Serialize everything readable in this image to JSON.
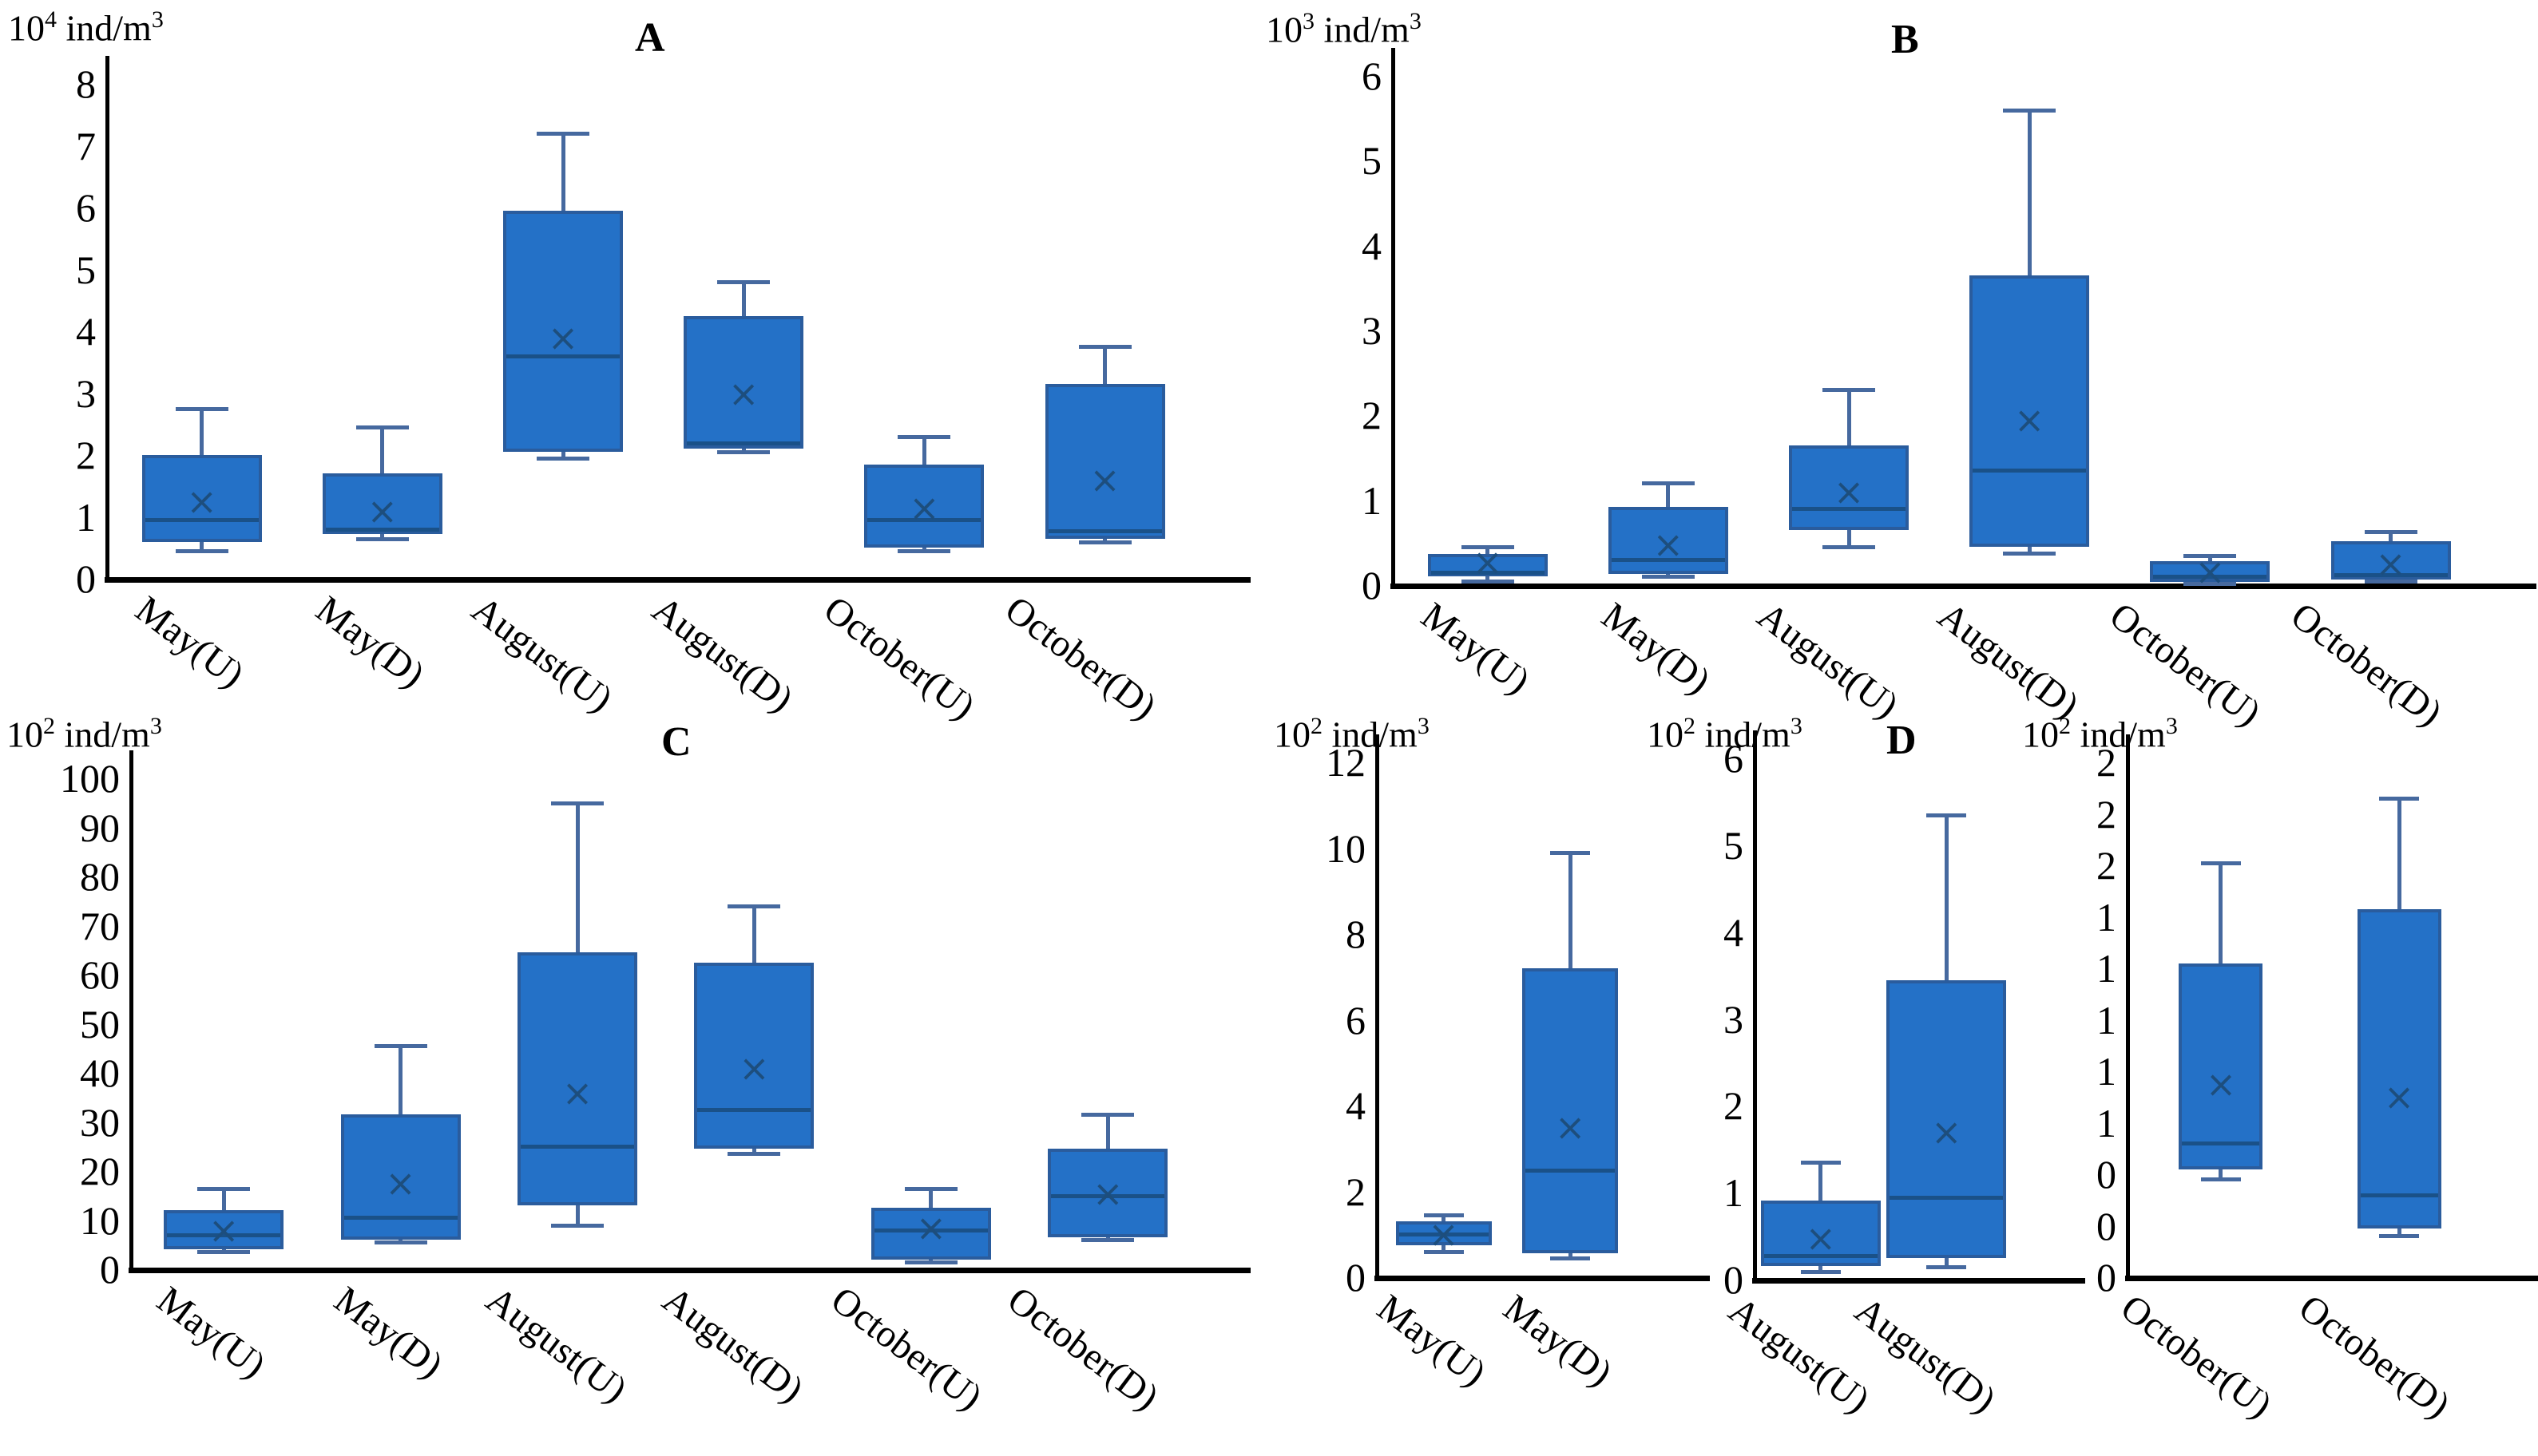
{
  "figure": {
    "background": "#ffffff",
    "colors": {
      "box_fill": "#2471c7",
      "box_border": "#2a5c9d",
      "whisker": "#46699f",
      "median": "#1a5188",
      "mean": "#1d4e7d",
      "axis": "#000000",
      "text": "#000000"
    },
    "mean_marker": "×"
  },
  "chart_data": [
    {
      "id": "A",
      "type": "box",
      "panel_letter": "A",
      "unit_text": "10⁴ ind/m³",
      "unit": {
        "prefix": "10",
        "power": "4",
        "unit": "ind/m",
        "unit_power": "3"
      },
      "ylabel": "10^4 ind/m^3",
      "ylim": [
        0,
        8
      ],
      "grid": false,
      "yticks": [
        {
          "v": 0,
          "label": "0"
        },
        {
          "v": 1,
          "label": "1"
        },
        {
          "v": 2,
          "label": "2"
        },
        {
          "v": 3,
          "label": "3"
        },
        {
          "v": 4,
          "label": "4"
        },
        {
          "v": 5,
          "label": "5"
        },
        {
          "v": 6,
          "label": "6"
        },
        {
          "v": 7,
          "label": "7"
        },
        {
          "v": 8,
          "label": "8"
        }
      ],
      "categories": [
        "May(U)",
        "May(D)",
        "August(U)",
        "August(D)",
        "October(U)",
        "October(D)"
      ],
      "boxes": [
        {
          "category": "May(U)",
          "whisker_low": 0.45,
          "q1": 0.6,
          "median": 0.95,
          "mean": 1.25,
          "q3": 2.0,
          "whisker_high": 2.75
        },
        {
          "category": "May(D)",
          "whisker_low": 0.65,
          "q1": 0.72,
          "median": 0.8,
          "mean": 1.1,
          "q3": 1.7,
          "whisker_high": 2.45
        },
        {
          "category": "August(U)",
          "whisker_low": 1.95,
          "q1": 2.05,
          "median": 3.6,
          "mean": 3.9,
          "q3": 5.95,
          "whisker_high": 7.2
        },
        {
          "category": "August(D)",
          "whisker_low": 2.05,
          "q1": 2.1,
          "median": 2.2,
          "mean": 3.0,
          "q3": 4.25,
          "whisker_high": 4.8
        },
        {
          "category": "October(U)",
          "whisker_low": 0.45,
          "q1": 0.5,
          "median": 0.95,
          "mean": 1.15,
          "q3": 1.85,
          "whisker_high": 2.3
        },
        {
          "category": "October(D)",
          "whisker_low": 0.6,
          "q1": 0.65,
          "median": 0.78,
          "mean": 1.6,
          "q3": 3.15,
          "whisker_high": 3.75
        }
      ]
    },
    {
      "id": "B",
      "type": "box",
      "panel_letter": "B",
      "unit_text": "10³ ind/m³",
      "unit": {
        "prefix": "10",
        "power": "3",
        "unit": "ind/m",
        "unit_power": "3"
      },
      "ylabel": "10^3 ind/m^3",
      "ylim": [
        0,
        6
      ],
      "grid": false,
      "yticks": [
        {
          "v": 0,
          "label": "0"
        },
        {
          "v": 1,
          "label": "1"
        },
        {
          "v": 2,
          "label": "2"
        },
        {
          "v": 3,
          "label": "3"
        },
        {
          "v": 4,
          "label": "4"
        },
        {
          "v": 5,
          "label": "5"
        },
        {
          "v": 6,
          "label": "6"
        }
      ],
      "categories": [
        "May(U)",
        "May(D)",
        "August(U)",
        "August(D)",
        "October(U)",
        "October(D)"
      ],
      "boxes": [
        {
          "category": "May(U)",
          "whisker_low": 0.05,
          "q1": 0.1,
          "median": 0.15,
          "mean": 0.27,
          "q3": 0.37,
          "whisker_high": 0.45
        },
        {
          "category": "May(D)",
          "whisker_low": 0.1,
          "q1": 0.13,
          "median": 0.3,
          "mean": 0.48,
          "q3": 0.92,
          "whisker_high": 1.2
        },
        {
          "category": "August(U)",
          "whisker_low": 0.45,
          "q1": 0.65,
          "median": 0.9,
          "mean": 1.1,
          "q3": 1.65,
          "whisker_high": 2.3
        },
        {
          "category": "August(D)",
          "whisker_low": 0.38,
          "q1": 0.45,
          "median": 1.35,
          "mean": 1.95,
          "q3": 3.65,
          "whisker_high": 5.6
        },
        {
          "category": "October(U)",
          "whisker_low": 0.02,
          "q1": 0.04,
          "median": 0.1,
          "mean": 0.16,
          "q3": 0.28,
          "whisker_high": 0.35
        },
        {
          "category": "October(D)",
          "whisker_low": 0.05,
          "q1": 0.07,
          "median": 0.12,
          "mean": 0.25,
          "q3": 0.52,
          "whisker_high": 0.63
        }
      ]
    },
    {
      "id": "C",
      "type": "box",
      "panel_letter": "C",
      "unit_text": "10² ind/m³",
      "unit": {
        "prefix": "10",
        "power": "2",
        "unit": "ind/m",
        "unit_power": "3"
      },
      "ylabel": "10^2 ind/m^3",
      "ylim": [
        0,
        100
      ],
      "grid": false,
      "yticks": [
        {
          "v": 0,
          "label": "0"
        },
        {
          "v": 10,
          "label": "10"
        },
        {
          "v": 20,
          "label": "20"
        },
        {
          "v": 30,
          "label": "30"
        },
        {
          "v": 40,
          "label": "40"
        },
        {
          "v": 50,
          "label": "50"
        },
        {
          "v": 60,
          "label": "60"
        },
        {
          "v": 70,
          "label": "70"
        },
        {
          "v": 80,
          "label": "80"
        },
        {
          "v": 90,
          "label": "90"
        },
        {
          "v": 100,
          "label": "100"
        }
      ],
      "categories": [
        "May(U)",
        "May(D)",
        "August(U)",
        "August(D)",
        "October(U)",
        "October(D)"
      ],
      "boxes": [
        {
          "category": "May(U)",
          "whisker_low": 3.5,
          "q1": 4.0,
          "median": 7.0,
          "mean": 8.0,
          "q3": 12.0,
          "whisker_high": 16.5
        },
        {
          "category": "May(D)",
          "whisker_low": 5.5,
          "q1": 6.0,
          "median": 10.5,
          "mean": 17.5,
          "q3": 31.5,
          "whisker_high": 45.5
        },
        {
          "category": "August(U)",
          "whisker_low": 9.0,
          "q1": 13.0,
          "median": 25.0,
          "mean": 36.0,
          "q3": 64.5,
          "whisker_high": 95.0
        },
        {
          "category": "August(D)",
          "whisker_low": 23.5,
          "q1": 24.5,
          "median": 32.5,
          "mean": 41.0,
          "q3": 62.5,
          "whisker_high": 74.0
        },
        {
          "category": "October(U)",
          "whisker_low": 1.5,
          "q1": 2.0,
          "median": 8.0,
          "mean": 8.5,
          "q3": 12.5,
          "whisker_high": 16.5
        },
        {
          "category": "October(D)",
          "whisker_low": 6.0,
          "q1": 6.5,
          "median": 15.0,
          "mean": 15.5,
          "q3": 24.5,
          "whisker_high": 31.5
        }
      ]
    },
    {
      "id": "D1",
      "type": "box",
      "panel_letter": "",
      "unit_text": "10² ind/m³",
      "unit": {
        "prefix": "10",
        "power": "2",
        "unit": "ind/m",
        "unit_power": "3"
      },
      "ylabel": "10^2 ind/m^3",
      "ylim": [
        0,
        12
      ],
      "grid": false,
      "yticks": [
        {
          "v": 0,
          "label": "0"
        },
        {
          "v": 2,
          "label": "2"
        },
        {
          "v": 4,
          "label": "4"
        },
        {
          "v": 6,
          "label": "6"
        },
        {
          "v": 8,
          "label": "8"
        },
        {
          "v": 10,
          "label": "10"
        },
        {
          "v": 12,
          "label": "12"
        }
      ],
      "categories": [
        "May(U)",
        "May(D)"
      ],
      "boxes": [
        {
          "category": "May(U)",
          "whisker_low": 0.6,
          "q1": 0.75,
          "median": 1.0,
          "mean": 1.0,
          "q3": 1.3,
          "whisker_high": 1.45
        },
        {
          "category": "May(D)",
          "whisker_low": 0.45,
          "q1": 0.55,
          "median": 2.5,
          "mean": 3.5,
          "q3": 7.2,
          "whisker_high": 9.9
        }
      ]
    },
    {
      "id": "D2",
      "type": "box",
      "panel_letter": "D",
      "unit_text": "10² ind/m³",
      "unit": {
        "prefix": "10",
        "power": "2",
        "unit": "ind/m",
        "unit_power": "3"
      },
      "ylabel": "10^2 ind/m^3",
      "ylim": [
        0,
        6
      ],
      "grid": false,
      "yticks": [
        {
          "v": 0,
          "label": "0"
        },
        {
          "v": 1,
          "label": "1"
        },
        {
          "v": 2,
          "label": "2"
        },
        {
          "v": 3,
          "label": "3"
        },
        {
          "v": 4,
          "label": "4"
        },
        {
          "v": 5,
          "label": "5"
        },
        {
          "v": 6,
          "label": "6"
        }
      ],
      "categories": [
        "August(U)",
        "August(D)"
      ],
      "boxes": [
        {
          "category": "August(U)",
          "whisker_low": 0.09,
          "q1": 0.16,
          "median": 0.28,
          "mean": 0.48,
          "q3": 0.91,
          "whisker_high": 1.35
        },
        {
          "category": "August(D)",
          "whisker_low": 0.15,
          "q1": 0.25,
          "median": 0.95,
          "mean": 1.7,
          "q3": 3.45,
          "whisker_high": 5.35
        }
      ]
    },
    {
      "id": "D3",
      "type": "box",
      "panel_letter": "",
      "unit_text": "10² ind/m³",
      "unit": {
        "prefix": "10",
        "power": "2",
        "unit": "ind/m",
        "unit_power": "3"
      },
      "ylabel": "10^2 ind/m^3",
      "ylim": [
        0,
        2
      ],
      "grid": false,
      "yticks": [
        {
          "v": 0.0,
          "label": "0"
        },
        {
          "v": 0.2,
          "label": "0"
        },
        {
          "v": 0.4,
          "label": "0"
        },
        {
          "v": 0.6,
          "label": "1"
        },
        {
          "v": 0.8,
          "label": "1"
        },
        {
          "v": 1.0,
          "label": "1"
        },
        {
          "v": 1.2,
          "label": "1"
        },
        {
          "v": 1.4,
          "label": "1"
        },
        {
          "v": 1.6,
          "label": "2"
        },
        {
          "v": 1.8,
          "label": "2"
        },
        {
          "v": 2.0,
          "label": "2"
        }
      ],
      "categories": [
        "October(U)",
        "October(D)"
      ],
      "boxes": [
        {
          "category": "October(U)",
          "whisker_low": 0.38,
          "q1": 0.42,
          "median": 0.52,
          "mean": 0.75,
          "q3": 1.22,
          "whisker_high": 1.61
        },
        {
          "category": "October(D)",
          "whisker_low": 0.16,
          "q1": 0.19,
          "median": 0.32,
          "mean": 0.7,
          "q3": 1.43,
          "whisker_high": 1.86
        }
      ]
    }
  ]
}
